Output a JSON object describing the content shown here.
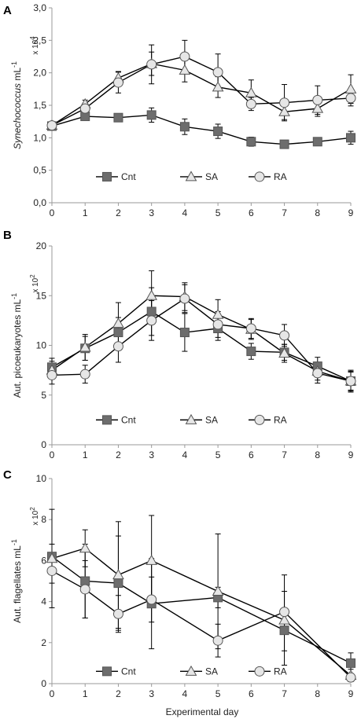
{
  "figure": {
    "xlabel": "Experimental day",
    "colors": {
      "cnt": "#6d6d6d",
      "open_fill": "#e6e6e6",
      "line": "#000000",
      "axis": "#9a9a9a"
    }
  },
  "chart_data": [
    {
      "type": "line",
      "panel": "A",
      "ylabel_italic": "Synechococcus",
      "ylabel_rest": " mL",
      "ylabel_exp": "-1",
      "multiplier_base": "x 10",
      "multiplier_exp": "4",
      "ylim": [
        0,
        3
      ],
      "y_ticks": [
        0,
        0.5,
        1,
        1.5,
        2,
        2.5,
        3
      ],
      "y_tick_labels": [
        "0,0",
        "0,5",
        "1,0",
        "1,5",
        "2,0",
        "2,5",
        "3,0"
      ],
      "xlim": [
        0,
        9
      ],
      "x_ticks": [
        0,
        1,
        2,
        3,
        4,
        5,
        6,
        7,
        8,
        9
      ],
      "x_tick_labels": [
        "0",
        "1",
        "2",
        "3",
        "4",
        "5",
        "6",
        "7",
        "8",
        "9"
      ],
      "legend_y": 0.4,
      "series": [
        {
          "name": "Cnt",
          "marker": "square",
          "x": [
            0,
            1,
            2,
            3,
            4,
            5,
            6,
            7,
            8,
            9
          ],
          "y": [
            1.18,
            1.33,
            1.31,
            1.35,
            1.17,
            1.1,
            0.94,
            0.9,
            0.94,
            1.0
          ],
          "err": [
            0.04,
            0.06,
            0.05,
            0.11,
            0.12,
            0.11,
            0.07,
            0.04,
            0.04,
            0.1
          ]
        },
        {
          "name": "SA",
          "marker": "triangle",
          "x": [
            0,
            1,
            2,
            3,
            4,
            5,
            6,
            7,
            8,
            9
          ],
          "y": [
            1.19,
            1.52,
            1.92,
            2.14,
            2.04,
            1.78,
            1.69,
            1.4,
            1.45,
            1.75
          ],
          "err": [
            0.04,
            0.06,
            0.1,
            0.18,
            0.18,
            0.16,
            0.2,
            0.12,
            0.12,
            0.22
          ]
        },
        {
          "name": "RA",
          "marker": "circle",
          "x": [
            0,
            1,
            2,
            3,
            4,
            5,
            6,
            7,
            8,
            9
          ],
          "y": [
            1.19,
            1.45,
            1.85,
            2.13,
            2.25,
            2.01,
            1.52,
            1.54,
            1.58,
            1.61
          ],
          "err": [
            0.04,
            0.08,
            0.16,
            0.3,
            0.25,
            0.28,
            0.1,
            0.28,
            0.22,
            0.12
          ]
        }
      ]
    },
    {
      "type": "line",
      "panel": "B",
      "ylabel_italic": "",
      "ylabel_rest": "Aut. picoeukaryotes mL",
      "ylabel_exp": "-1",
      "multiplier_base": "x 10",
      "multiplier_exp": "2",
      "ylim": [
        0,
        20
      ],
      "y_ticks": [
        0,
        5,
        10,
        15,
        20
      ],
      "y_tick_labels": [
        "0",
        "5",
        "10",
        "15",
        "20"
      ],
      "xlim": [
        0,
        9
      ],
      "x_ticks": [
        0,
        1,
        2,
        3,
        4,
        5,
        6,
        7,
        8,
        9
      ],
      "x_tick_labels": [
        "0",
        "1",
        "2",
        "3",
        "4",
        "5",
        "6",
        "7",
        "8",
        "9"
      ],
      "legend_y": 2.5,
      "series": [
        {
          "name": "Cnt",
          "marker": "square",
          "x": [
            0,
            1,
            2,
            3,
            4,
            5,
            6,
            7,
            8,
            9
          ],
          "y": [
            7.8,
            9.7,
            11.3,
            13.4,
            11.3,
            11.7,
            9.4,
            9.3,
            7.9,
            6.4
          ],
          "err": [
            0.9,
            1.2,
            1.5,
            2.4,
            1.9,
            1.2,
            0.8,
            0.8,
            0.9,
            0.9
          ]
        },
        {
          "name": "SA",
          "marker": "triangle",
          "x": [
            0,
            1,
            2,
            3,
            4,
            5,
            6,
            7,
            8,
            9
          ],
          "y": [
            7.5,
            9.8,
            12.2,
            15.0,
            14.9,
            13.1,
            11.6,
            9.2,
            7.4,
            6.4
          ],
          "err": [
            0.9,
            1.3,
            2.1,
            2.5,
            1.4,
            1.5,
            1.0,
            0.9,
            0.9,
            1.1
          ]
        },
        {
          "name": "RA",
          "marker": "circle",
          "x": [
            0,
            1,
            2,
            3,
            4,
            5,
            6,
            7,
            8,
            9
          ],
          "y": [
            7.0,
            7.1,
            9.9,
            12.5,
            14.7,
            12.1,
            11.7,
            11.0,
            7.2,
            6.4
          ],
          "err": [
            0.9,
            0.9,
            1.6,
            2.0,
            1.4,
            1.3,
            1.0,
            1.1,
            1.0,
            1.0
          ]
        }
      ]
    },
    {
      "type": "line",
      "panel": "C",
      "ylabel_italic": "",
      "ylabel_rest": "Aut. flagellates mL",
      "ylabel_exp": "-1",
      "multiplier_base": "x 10",
      "multiplier_exp": "2",
      "ylim": [
        0,
        10
      ],
      "y_ticks": [
        0,
        2,
        4,
        6,
        8,
        10
      ],
      "y_tick_labels": [
        "0",
        "2",
        "4",
        "6",
        "8",
        "10"
      ],
      "xlim": [
        0,
        9
      ],
      "x_ticks": [
        0,
        1,
        2,
        3,
        4,
        5,
        6,
        7,
        8,
        9
      ],
      "x_tick_labels": [
        "0",
        "1",
        "2",
        "3",
        "4",
        "5",
        "6",
        "7",
        "8",
        "9"
      ],
      "legend_y": 0.6,
      "series": [
        {
          "name": "Cnt",
          "marker": "square",
          "x": [
            0,
            1,
            2,
            3,
            5,
            7,
            9
          ],
          "y": [
            6.2,
            5.0,
            4.9,
            3.9,
            4.2,
            2.6,
            1.0
          ],
          "err": [
            0.6,
            1.8,
            2.3,
            2.2,
            0.5,
            1.0,
            0.5
          ]
        },
        {
          "name": "SA",
          "marker": "triangle",
          "x": [
            0,
            1,
            2,
            3,
            5,
            7,
            9
          ],
          "y": [
            6.1,
            6.6,
            5.3,
            6.0,
            4.5,
            3.1,
            0.4
          ],
          "err": [
            2.4,
            0.9,
            2.6,
            2.2,
            2.8,
            2.2,
            0.3
          ]
        },
        {
          "name": "RA",
          "marker": "circle",
          "x": [
            0,
            1,
            2,
            3,
            5,
            7,
            9
          ],
          "y": [
            5.5,
            4.6,
            3.4,
            4.1,
            2.1,
            3.5,
            0.3
          ],
          "err": [
            0.6,
            1.4,
            0.9,
            1.1,
            0.8,
            1.0,
            0.2
          ]
        }
      ]
    }
  ]
}
